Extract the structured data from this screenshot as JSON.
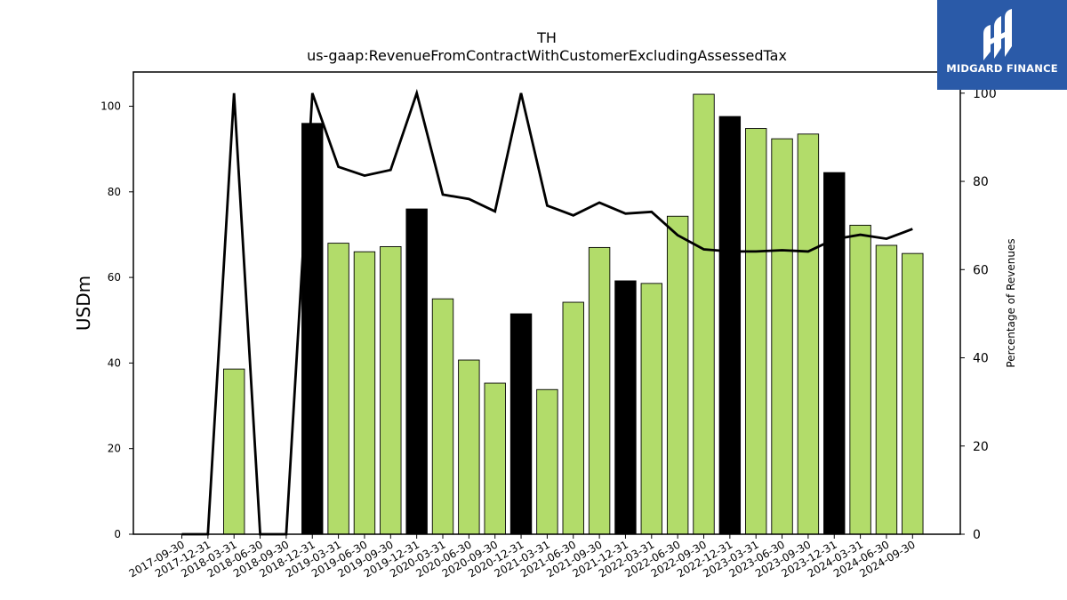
{
  "chart_data": {
    "type": "bar",
    "title": "TH",
    "subtitle": "us-gaap:RevenueFromContractWithCustomerExcludingAssessedTax",
    "ylabel": "USDm",
    "y2label": "Percentage of Revenues",
    "ylim": [
      0,
      108
    ],
    "y2lim": [
      0,
      104.8
    ],
    "yticks": [
      0,
      20,
      40,
      60,
      80,
      100
    ],
    "y2ticks": [
      0,
      20,
      40,
      60,
      80,
      100
    ],
    "categories": [
      "2017-09-30",
      "2017-12-31",
      "2018-03-31",
      "2018-06-30",
      "2018-09-30",
      "2018-12-31",
      "2019-03-31",
      "2019-06-30",
      "2019-09-30",
      "2019-12-31",
      "2020-03-31",
      "2020-06-30",
      "2020-09-30",
      "2020-12-31",
      "2021-03-31",
      "2021-06-30",
      "2021-09-30",
      "2021-12-31",
      "2022-03-31",
      "2022-06-30",
      "2022-09-30",
      "2022-12-31",
      "2023-03-31",
      "2023-06-30",
      "2023-09-30",
      "2023-12-31",
      "2024-03-31",
      "2024-06-30",
      "2024-09-30"
    ],
    "series": [
      {
        "kind": "bar",
        "values": [
          0,
          0,
          38.6,
          0,
          0,
          96.0,
          68.0,
          66.0,
          67.2,
          76.0,
          55.0,
          40.7,
          35.3,
          51.5,
          33.8,
          54.2,
          67.0,
          59.2,
          58.6,
          74.3,
          102.8,
          97.6,
          94.8,
          92.4,
          93.5,
          84.5,
          72.2,
          67.5,
          65.6
        ],
        "colors": [
          "#b2dc6a",
          "#b2dc6a",
          "#b2dc6a",
          "#b2dc6a",
          "#b2dc6a",
          "#000000",
          "#b2dc6a",
          "#b2dc6a",
          "#b2dc6a",
          "#000000",
          "#b2dc6a",
          "#b2dc6a",
          "#b2dc6a",
          "#000000",
          "#b2dc6a",
          "#b2dc6a",
          "#b2dc6a",
          "#000000",
          "#b2dc6a",
          "#b2dc6a",
          "#b2dc6a",
          "#000000",
          "#b2dc6a",
          "#b2dc6a",
          "#b2dc6a",
          "#000000",
          "#b2dc6a",
          "#b2dc6a",
          "#b2dc6a"
        ]
      },
      {
        "kind": "line",
        "axis": "secondary",
        "color": "#000000",
        "values": [
          0,
          0,
          100,
          0,
          0,
          100,
          83.3,
          81.3,
          82.6,
          100,
          77.0,
          76.0,
          73.2,
          100,
          74.5,
          72.3,
          75.2,
          72.7,
          73.1,
          67.8,
          64.6,
          64.1,
          64.1,
          64.4,
          64.1,
          66.9,
          67.9,
          67.0,
          69.2
        ]
      }
    ],
    "grid": false,
    "legend": "none"
  },
  "logo": {
    "text": "MIDGARD FINANCE",
    "color": "#2a5aa8"
  }
}
